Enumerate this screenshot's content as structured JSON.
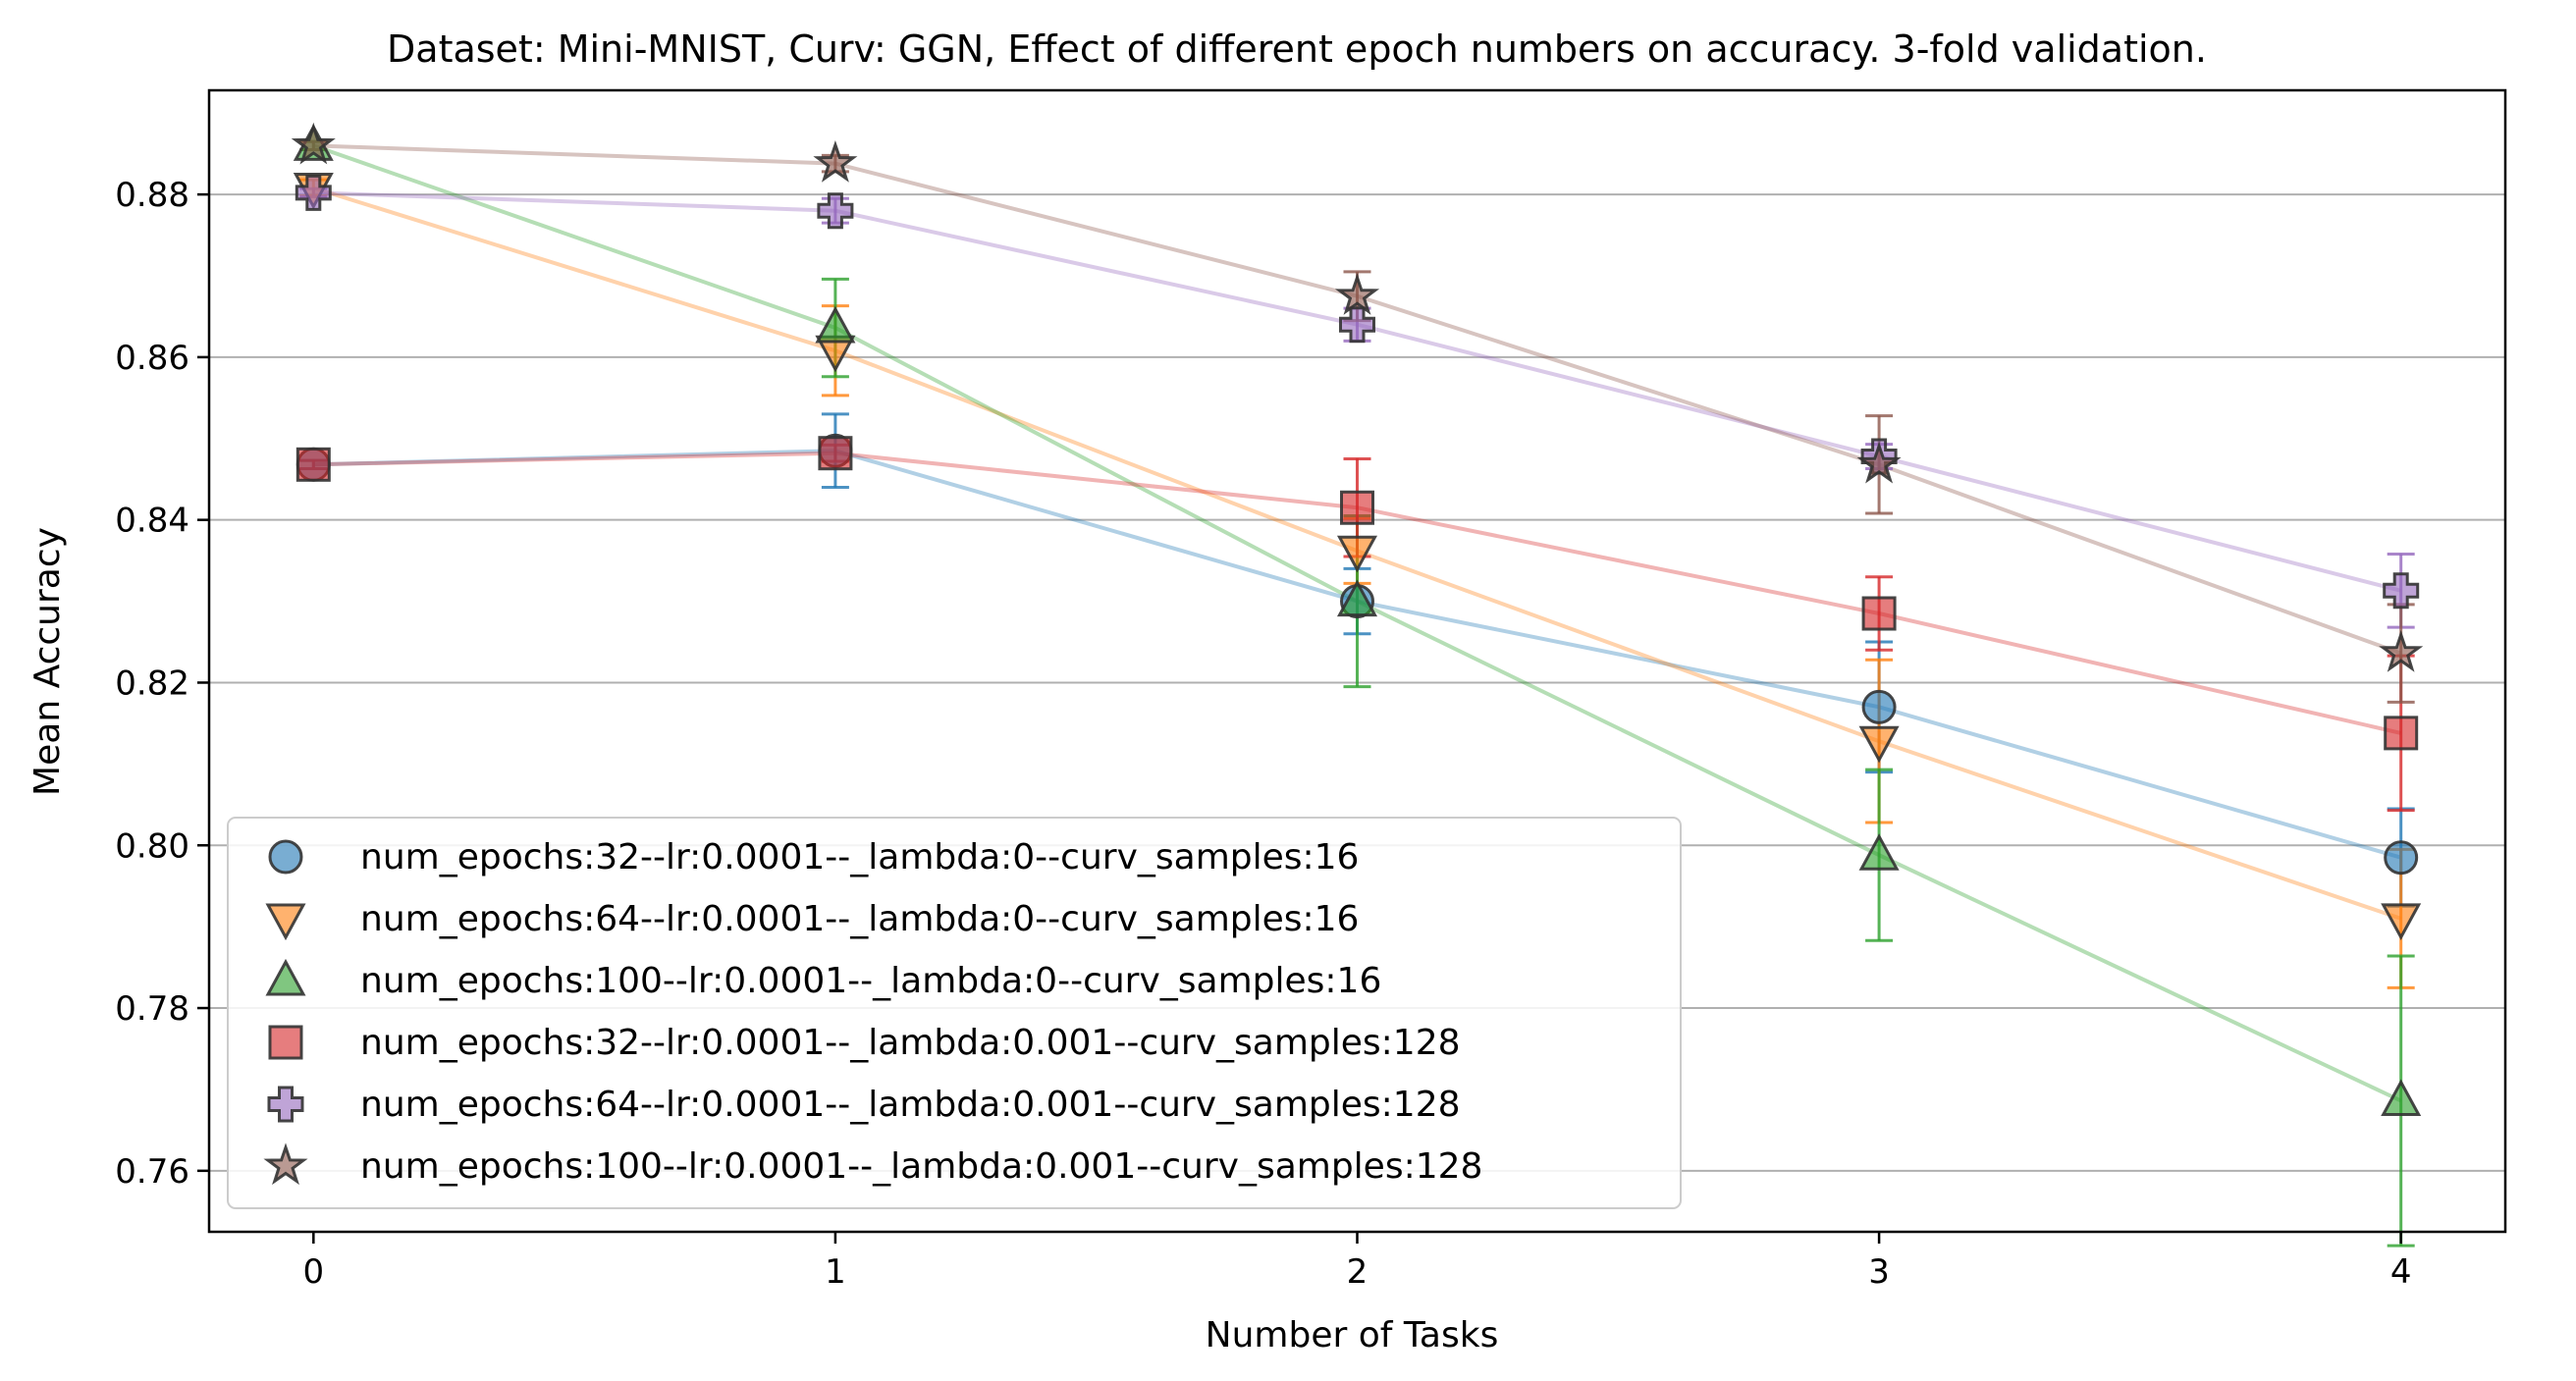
{
  "chart_data": {
    "type": "scatter",
    "title": "Dataset: Mini-MNIST, Curv: GGN, Effect of different epoch numbers on accuracy. 3-fold validation.",
    "xlabel": "Number of Tasks",
    "ylabel": "Mean Accuracy",
    "x": [
      0,
      1,
      2,
      3,
      4
    ],
    "xlim": [
      -0.2,
      4.2
    ],
    "ylim": [
      0.7525,
      0.8928
    ],
    "xticks": [
      0,
      1,
      2,
      3,
      4
    ],
    "xtick_labels": [
      "0",
      "1",
      "2",
      "3",
      "4"
    ],
    "yticks": [
      0.76,
      0.78,
      0.8,
      0.82,
      0.84,
      0.86,
      0.88
    ],
    "ytick_labels": [
      "0.76",
      "0.78",
      "0.80",
      "0.82",
      "0.84",
      "0.86",
      "0.88"
    ],
    "grid": "horizontal",
    "legend_position": "lower-left",
    "series": [
      {
        "name": "num_epochs:32--lr:0.0001--_lambda:0--curv_samples:16",
        "marker": "circle",
        "color": "#1f77b4",
        "values": [
          0.8468,
          0.8485,
          0.83,
          0.817,
          0.7985
        ],
        "errors": [
          0.0005,
          0.0045,
          0.004,
          0.008,
          0.006
        ]
      },
      {
        "name": "num_epochs:64--lr:0.0001--_lambda:0--curv_samples:16",
        "marker": "triangle-down",
        "color": "#ff7f0e",
        "values": [
          0.8808,
          0.8608,
          0.8362,
          0.8128,
          0.791
        ],
        "errors": [
          0.001,
          0.0055,
          0.004,
          0.01,
          0.0085
        ]
      },
      {
        "name": "num_epochs:100--lr:0.0001--_lambda:0--curv_samples:16",
        "marker": "triangle-up",
        "color": "#2ca02c",
        "values": [
          0.886,
          0.8636,
          0.83,
          0.7988,
          0.7686
        ],
        "errors": [
          0.0005,
          0.006,
          0.0105,
          0.0105,
          0.0178
        ]
      },
      {
        "name": "num_epochs:32--lr:0.0001--_lambda:0.001--curv_samples:128",
        "marker": "square",
        "color": "#d62728",
        "values": [
          0.8468,
          0.8482,
          0.8415,
          0.8285,
          0.8138
        ],
        "errors": [
          0.0005,
          0.001,
          0.006,
          0.0045,
          0.0095
        ]
      },
      {
        "name": "num_epochs:64--lr:0.0001--_lambda:0.001--curv_samples:128",
        "marker": "plus",
        "color": "#9467bd",
        "values": [
          0.8802,
          0.878,
          0.864,
          0.8478,
          0.8313
        ],
        "errors": [
          0.0005,
          0.0015,
          0.002,
          0.0015,
          0.0045
        ]
      },
      {
        "name": "num_epochs:100--lr:0.0001--_lambda:0.001--curv_samples:128",
        "marker": "star",
        "color": "#8c564b",
        "values": [
          0.886,
          0.8838,
          0.8675,
          0.8468,
          0.8236
        ],
        "errors": [
          0.0005,
          0.001,
          0.003,
          0.006,
          0.006
        ]
      }
    ]
  }
}
